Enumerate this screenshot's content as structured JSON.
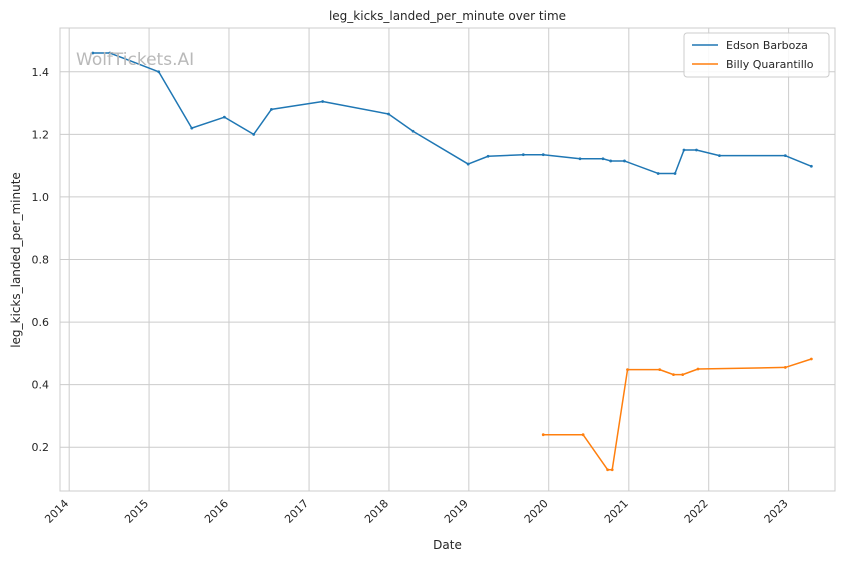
{
  "watermark": "WolfTickets.AI",
  "chart_data": {
    "type": "line",
    "title": "leg_kicks_landed_per_minute over time",
    "xlabel": "Date",
    "ylabel": "leg_kicks_landed_per_minute",
    "xlim": [
      "2013-11-20",
      "2023-08-01"
    ],
    "ylim": [
      0.06,
      1.54
    ],
    "x_ticks": [
      "2014",
      "2015",
      "2016",
      "2017",
      "2018",
      "2019",
      "2020",
      "2021",
      "2022",
      "2023"
    ],
    "y_ticks": [
      "0.2",
      "0.4",
      "0.6",
      "0.8",
      "1.0",
      "1.2",
      "1.4"
    ],
    "grid": true,
    "legend_position": "top-right",
    "series": [
      {
        "name": "Edson Barboza",
        "color": "#1f77b4",
        "points": [
          [
            "2014-04-19",
            1.46
          ],
          [
            "2014-07-06",
            1.46
          ],
          [
            "2015-02-14",
            1.4
          ],
          [
            "2015-07-15",
            1.22
          ],
          [
            "2015-12-11",
            1.255
          ],
          [
            "2016-04-23",
            1.2
          ],
          [
            "2016-07-13",
            1.28
          ],
          [
            "2017-03-04",
            1.305
          ],
          [
            "2017-12-30",
            1.265
          ],
          [
            "2018-04-21",
            1.21
          ],
          [
            "2018-12-29",
            1.105
          ],
          [
            "2019-03-30",
            1.13
          ],
          [
            "2019-09-07",
            1.135
          ],
          [
            "2019-12-07",
            1.135
          ],
          [
            "2020-05-23",
            1.122
          ],
          [
            "2020-09-05",
            1.122
          ],
          [
            "2020-10-10",
            1.115
          ],
          [
            "2020-12-12",
            1.115
          ],
          [
            "2021-05-15",
            1.075
          ],
          [
            "2021-07-31",
            1.075
          ],
          [
            "2021-09-10",
            1.15
          ],
          [
            "2021-11-06",
            1.15
          ],
          [
            "2022-02-19",
            1.132
          ],
          [
            "2022-12-17",
            1.132
          ],
          [
            "2023-04-15",
            1.098
          ]
        ]
      },
      {
        "name": "Billy Quarantillo",
        "color": "#ff7f0e",
        "points": [
          [
            "2019-12-07",
            0.24
          ],
          [
            "2020-06-06",
            0.24
          ],
          [
            "2020-09-26",
            0.128
          ],
          [
            "2020-10-17",
            0.128
          ],
          [
            "2020-12-26",
            0.448
          ],
          [
            "2021-05-22",
            0.448
          ],
          [
            "2021-07-24",
            0.432
          ],
          [
            "2021-09-04",
            0.432
          ],
          [
            "2021-11-13",
            0.45
          ],
          [
            "2022-12-17",
            0.455
          ],
          [
            "2023-04-15",
            0.482
          ]
        ]
      }
    ]
  }
}
